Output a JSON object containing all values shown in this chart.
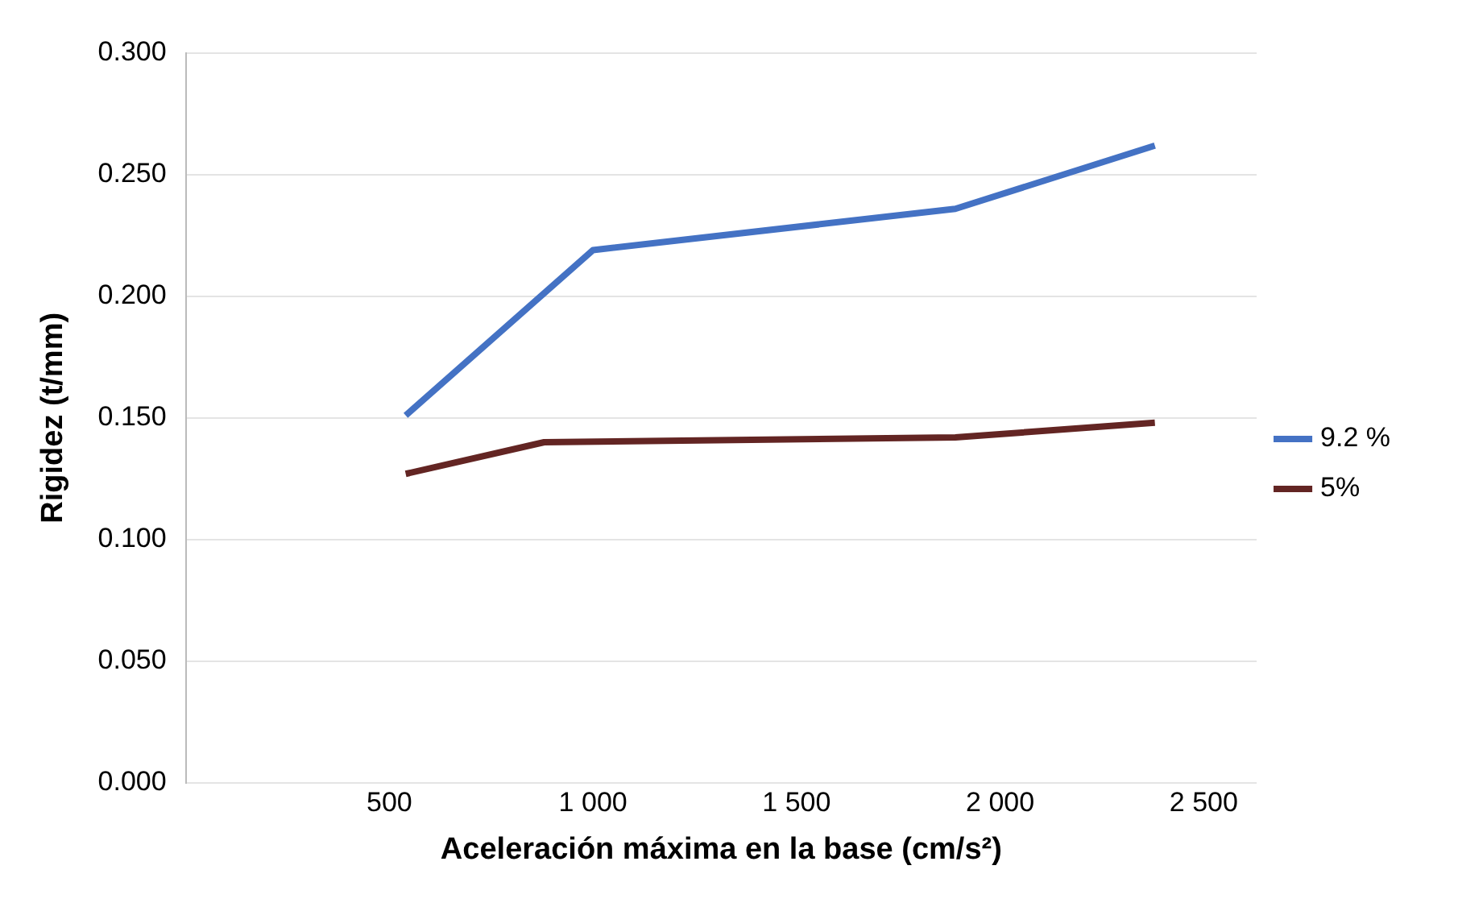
{
  "chart_data": {
    "type": "line",
    "xlabel": "Aceleración máxima en la base (cm/s²)",
    "ylabel": "Rigidez (t/mm)",
    "xlim": [
      0,
      2630
    ],
    "xticks": [
      {
        "value": 500,
        "label": "500"
      },
      {
        "value": 1000,
        "label": "1 000"
      },
      {
        "value": 1500,
        "label": "1 500"
      },
      {
        "value": 2000,
        "label": "2 000"
      },
      {
        "value": 2500,
        "label": "2 500"
      }
    ],
    "ylim": [
      0,
      0.3
    ],
    "yticks": [
      {
        "value": 0,
        "label": "0.000"
      },
      {
        "value": 0.05,
        "label": "0.050"
      },
      {
        "value": 0.1,
        "label": "0.100"
      },
      {
        "value": 0.15,
        "label": "0.150"
      },
      {
        "value": 0.2,
        "label": "0.200"
      },
      {
        "value": 0.25,
        "label": "0.250"
      },
      {
        "value": 0.3,
        "label": "0.300"
      }
    ],
    "series": [
      {
        "name": "9.2 %",
        "color": "#4472c4",
        "x": [
          540,
          1000,
          1890,
          2380
        ],
        "values": [
          0.151,
          0.219,
          0.236,
          0.262
        ]
      },
      {
        "name": "5%",
        "color": "#632523",
        "x": [
          540,
          880,
          1890,
          2380
        ],
        "values": [
          0.127,
          0.14,
          0.142,
          0.148
        ]
      }
    ],
    "grid": "y",
    "legend": "right",
    "marker": "none",
    "line_style": "solid"
  }
}
